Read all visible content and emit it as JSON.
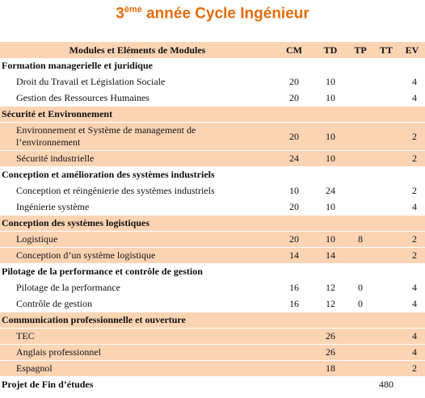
{
  "title": {
    "number": "3",
    "sup": "ème",
    "text": "année Cycle Ingénieur"
  },
  "table": {
    "header": {
      "module": "Modules et Eléments de Modules",
      "columns": [
        "CM",
        "TD",
        "TP",
        "TT",
        "EV"
      ]
    },
    "groups": [
      {
        "title": "Formation managerielle et juridique",
        "rows": [
          {
            "name": "Droit du Travail et Législation Sociale",
            "CM": 20,
            "TD": 10,
            "EV": 4
          },
          {
            "name": "Gestion des Ressources Humaines",
            "CM": 20,
            "TD": 10,
            "EV": 4
          }
        ]
      },
      {
        "title": "Sécurité et Environnement",
        "rows": [
          {
            "name": "Environnement et Système de management de l’environnement",
            "CM": 20,
            "TD": 10,
            "EV": 2
          },
          {
            "name": "Sécurité industrielle",
            "CM": 24,
            "TD": 10,
            "EV": 2
          }
        ]
      },
      {
        "title": "Conception et amélioration des systèmes industriels",
        "rows": [
          {
            "name": "Conception et réingénierie des systèmes industriels",
            "CM": 10,
            "TD": 24,
            "EV": 2
          },
          {
            "name": "Ingénierie système",
            "CM": 20,
            "TD": 10,
            "EV": 4
          }
        ]
      },
      {
        "title": "Conception des systèmes logistiques",
        "rows": [
          {
            "name": "Logistique",
            "CM": 20,
            "TD": 10,
            "TP": 8,
            "EV": 2
          },
          {
            "name": "Conception d’un système logistique",
            "CM": 14,
            "TD": 14,
            "EV": 2
          }
        ]
      },
      {
        "title": "Pilotage de la performance et contrôle de gestion",
        "rows": [
          {
            "name": "Pilotage de la performance",
            "CM": 16,
            "TD": 12,
            "TP": 0,
            "EV": 4
          },
          {
            "name": "Contrôle de gestion",
            "CM": 16,
            "TD": 12,
            "TP": 0,
            "EV": 4
          }
        ]
      },
      {
        "title": "Communication professionnelle et ouverture",
        "rows": [
          {
            "name": "TEC",
            "TD": 26,
            "EV": 4
          },
          {
            "name": "Anglais professionnel",
            "TD": 26,
            "EV": 4
          },
          {
            "name": "Espagnol",
            "TD": 18,
            "EV": 2
          }
        ]
      },
      {
        "title": "Projet de Fin d’études",
        "TT": 480
      }
    ]
  }
}
